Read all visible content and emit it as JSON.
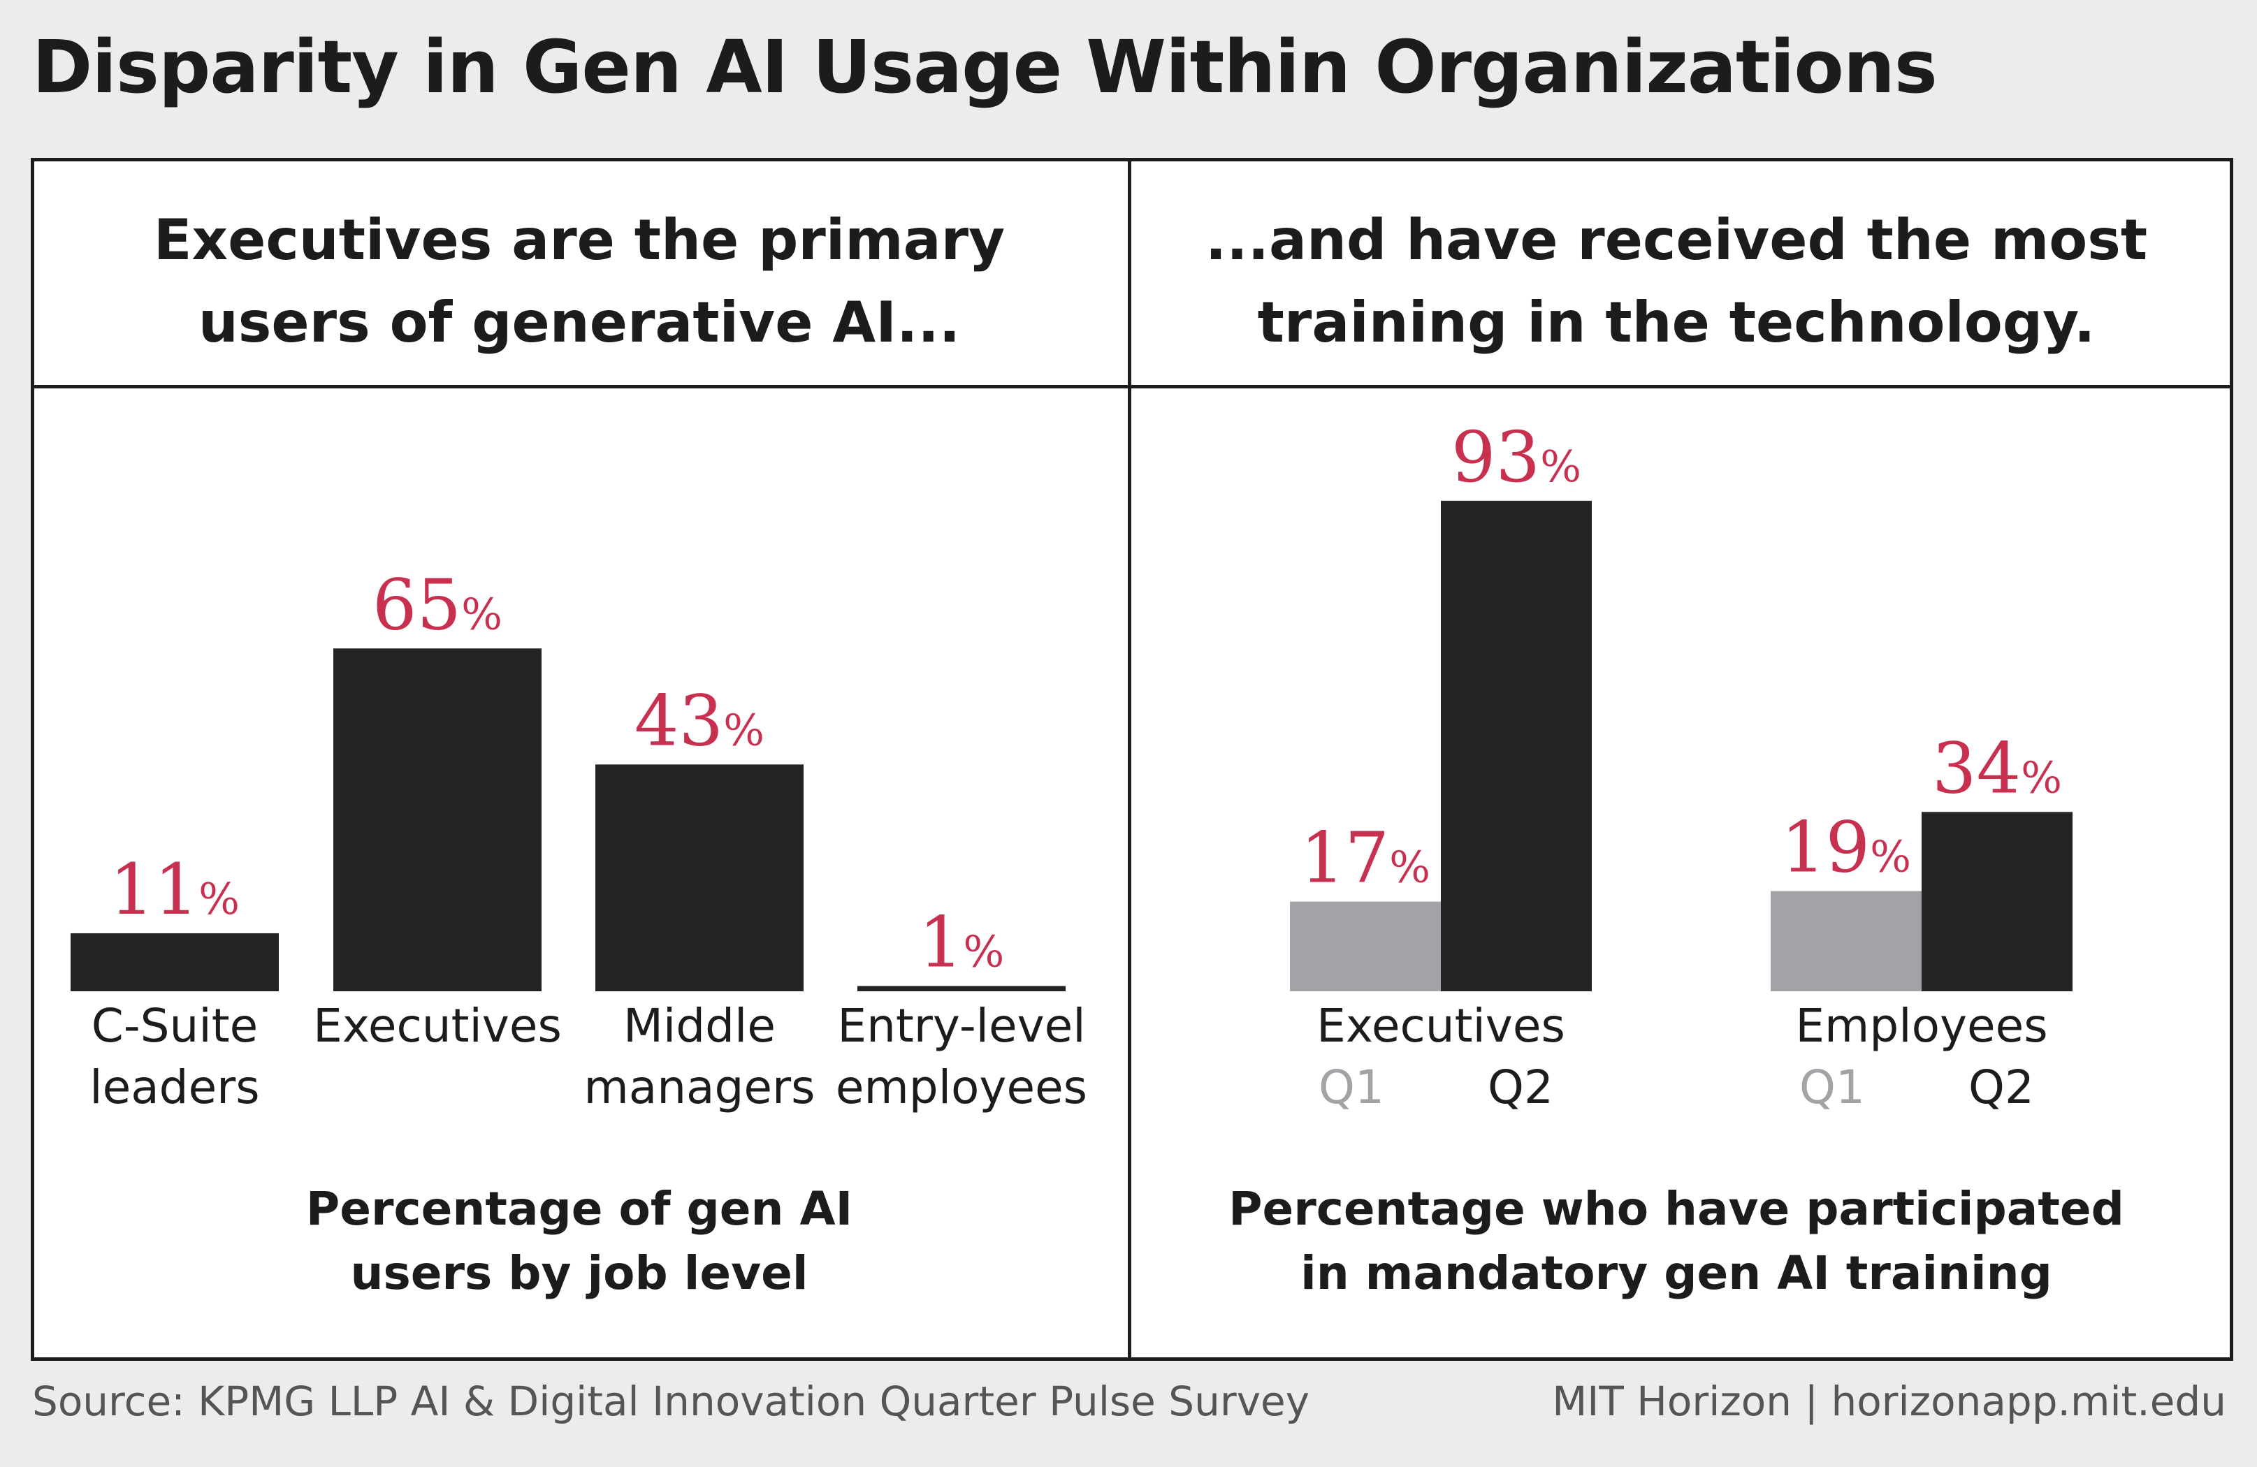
{
  "title": "Disparity in Gen AI Usage Within Organizations",
  "left_panel": {
    "heading": [
      "Executives are the primary",
      "users of generative AI..."
    ],
    "caption": [
      "Percentage of gen AI",
      "users by job level"
    ]
  },
  "right_panel": {
    "heading": [
      "...and have received the most",
      "training in the technology."
    ],
    "caption": [
      "Percentage who have participated",
      "in mandatory gen AI training"
    ]
  },
  "percent_symbol": "%",
  "colors": {
    "bar_dark": "#232323",
    "bar_q1": "#a3a2a7",
    "value_label": "#c8304f"
  },
  "chart_data": [
    {
      "type": "bar",
      "title": "Percentage of gen AI users by job level",
      "categories": [
        [
          "C-Suite",
          "leaders"
        ],
        [
          "Executives"
        ],
        [
          "Middle",
          "managers"
        ],
        [
          "Entry-level",
          "employees"
        ]
      ],
      "values": [
        11,
        65,
        43,
        1
      ],
      "ylim": [
        0,
        100
      ],
      "unit": "%"
    },
    {
      "type": "bar",
      "title": "Percentage who have participated in mandatory gen AI training",
      "categories": [
        "Executives",
        "Employees"
      ],
      "series": [
        {
          "name": "Q1",
          "values": [
            17,
            19
          ]
        },
        {
          "name": "Q2",
          "values": [
            93,
            34
          ]
        }
      ],
      "ylim": [
        0,
        100
      ],
      "unit": "%"
    }
  ],
  "footer": {
    "source": "Source: KPMG LLP AI & Digital Innovation Quarter Pulse Survey",
    "credit": "MIT Horizon | horizonapp.mit.edu"
  }
}
